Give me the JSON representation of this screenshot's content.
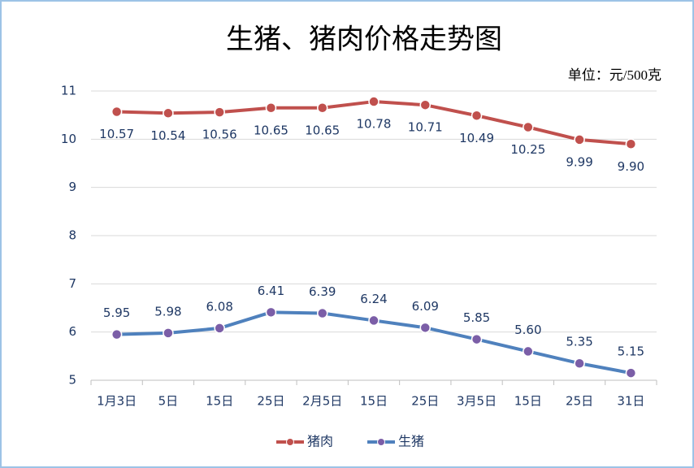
{
  "chart_data": {
    "type": "line",
    "title": "生猪、猪肉价格走势图",
    "subtitle": "单位：元/500克",
    "categories": [
      "1月3日",
      "5日",
      "15日",
      "25日",
      "2月5日",
      "15日",
      "25日",
      "3月5日",
      "15日",
      "25日",
      "31日"
    ],
    "series": [
      {
        "name": "猪肉",
        "color": "#c0504d",
        "marker_color": "#c0504d",
        "values": [
          10.57,
          10.54,
          10.56,
          10.65,
          10.65,
          10.78,
          10.71,
          10.49,
          10.25,
          9.99,
          9.9
        ],
        "value_labels": [
          "10.57",
          "10.54",
          "10.56",
          "10.65",
          "10.65",
          "10.78",
          "10.71",
          "10.49",
          "10.25",
          "9.99",
          "9.90"
        ]
      },
      {
        "name": "生猪",
        "color": "#4f81bd",
        "marker_color": "#7b5ea7",
        "values": [
          5.95,
          5.98,
          6.08,
          6.41,
          6.39,
          6.24,
          6.09,
          5.85,
          5.6,
          5.35,
          5.15
        ],
        "value_labels": [
          "5.95",
          "5.98",
          "6.08",
          "6.41",
          "6.39",
          "6.24",
          "6.09",
          "5.85",
          "5.60",
          "5.35",
          "5.15"
        ]
      }
    ],
    "ylim": [
      5,
      11
    ],
    "yticks": [
      5,
      6,
      7,
      8,
      9,
      10,
      11
    ],
    "grid": true,
    "legend": "bottom"
  }
}
